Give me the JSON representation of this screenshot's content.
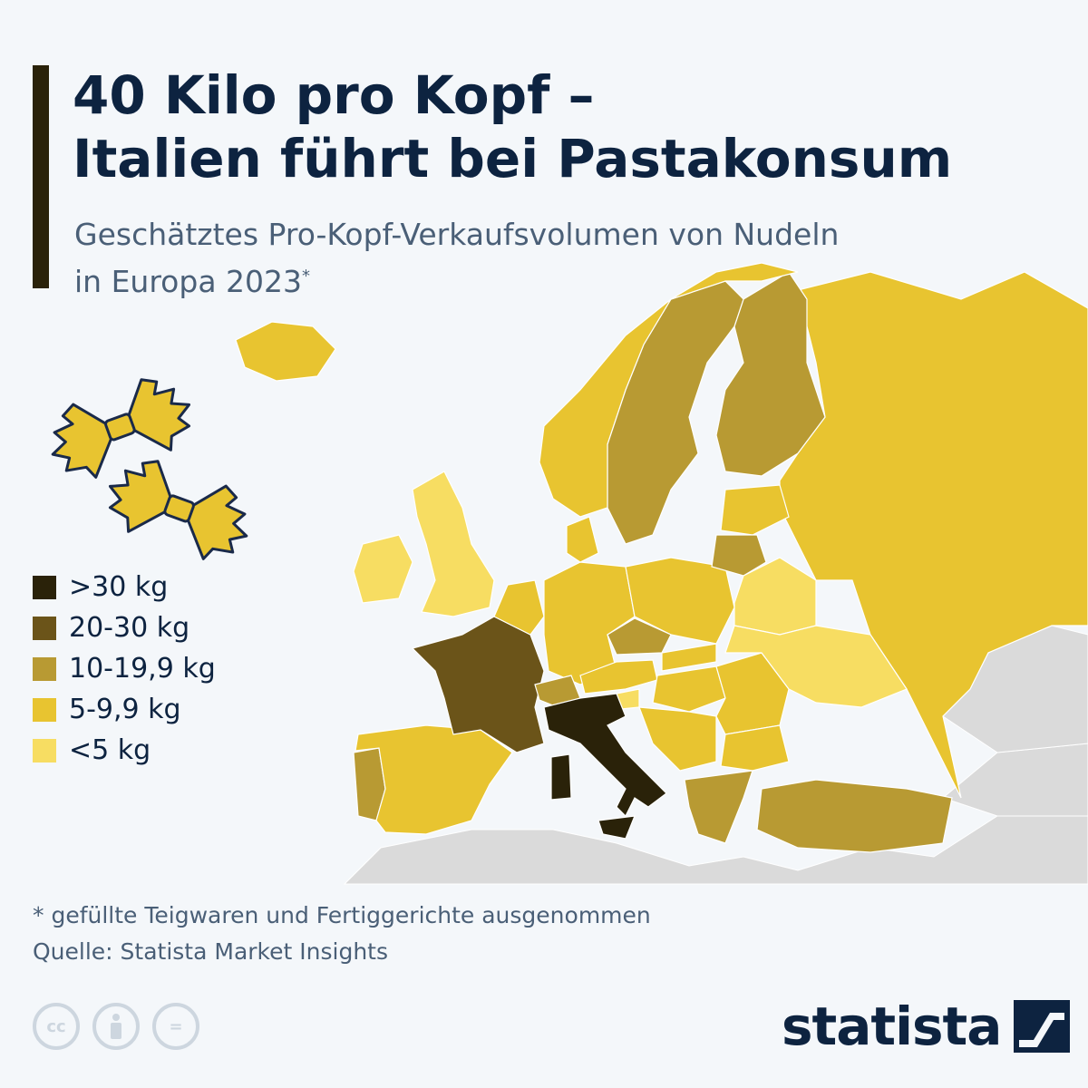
{
  "title": {
    "line1": "40 Kilo pro Kopf –",
    "line2": "Italien führt bei Pastakonsum"
  },
  "subtitle": {
    "line1": "Geschätztes Pro-Kopf-Verkaufsvolumen von Nudeln",
    "line2": "in Europa 2023",
    "marker": "*"
  },
  "legend": [
    {
      "label": ">30 kg",
      "color": "#2a2209"
    },
    {
      "label": "20-30 kg",
      "color": "#6b5419"
    },
    {
      "label": "10-19,9 kg",
      "color": "#b89a33"
    },
    {
      "label": "5-9,9 kg",
      "color": "#e8c430"
    },
    {
      "label": "<5 kg",
      "color": "#f7dd62"
    }
  ],
  "colors": {
    "nodata": "#dadada",
    "water": "#f4f7fa",
    "title": "#0d2340",
    "accent_bar": "#2a2209",
    "icon_fill": "#e8c430",
    "icon_stroke": "#1a2a4a"
  },
  "map_data": {
    "type": "choropleth",
    "region": "Europe",
    "year": "2023",
    "unit": "kg per capita",
    "countries": [
      {
        "name": "Italy",
        "category": ">30 kg"
      },
      {
        "name": "France",
        "category": "20-30 kg"
      },
      {
        "name": "Switzerland",
        "category": "10-19,9 kg"
      },
      {
        "name": "Czechia",
        "category": "10-19,9 kg"
      },
      {
        "name": "Sweden",
        "category": "10-19,9 kg"
      },
      {
        "name": "Finland",
        "category": "10-19,9 kg"
      },
      {
        "name": "Lithuania",
        "category": "10-19,9 kg"
      },
      {
        "name": "Greece",
        "category": "10-19,9 kg"
      },
      {
        "name": "Turkey",
        "category": "10-19,9 kg"
      },
      {
        "name": "Portugal",
        "category": "10-19,9 kg"
      },
      {
        "name": "Spain",
        "category": "5-9,9 kg"
      },
      {
        "name": "Germany",
        "category": "5-9,9 kg"
      },
      {
        "name": "Poland",
        "category": "5-9,9 kg"
      },
      {
        "name": "Russia",
        "category": "5-9,9 kg"
      },
      {
        "name": "Norway",
        "category": "5-9,9 kg"
      },
      {
        "name": "Iceland",
        "category": "5-9,9 kg"
      },
      {
        "name": "Austria",
        "category": "5-9,9 kg"
      },
      {
        "name": "Hungary",
        "category": "5-9,9 kg"
      },
      {
        "name": "Romania",
        "category": "5-9,9 kg"
      },
      {
        "name": "Bulgaria",
        "category": "5-9,9 kg"
      },
      {
        "name": "Denmark",
        "category": "5-9,9 kg"
      },
      {
        "name": "Estonia",
        "category": "5-9,9 kg"
      },
      {
        "name": "Latvia",
        "category": "5-9,9 kg"
      },
      {
        "name": "Croatia",
        "category": "5-9,9 kg"
      },
      {
        "name": "Serbia",
        "category": "5-9,9 kg"
      },
      {
        "name": "Slovakia",
        "category": "5-9,9 kg"
      },
      {
        "name": "Belgium",
        "category": "5-9,9 kg"
      },
      {
        "name": "Netherlands",
        "category": "5-9,9 kg"
      },
      {
        "name": "United Kingdom",
        "category": "<5 kg"
      },
      {
        "name": "Ireland",
        "category": "<5 kg"
      },
      {
        "name": "Ukraine",
        "category": "<5 kg"
      },
      {
        "name": "Belarus",
        "category": "<5 kg"
      },
      {
        "name": "Slovenia",
        "category": "<5 kg"
      },
      {
        "name": "Moldova",
        "category": "<5 kg"
      }
    ]
  },
  "footnote": "* gefüllte Teigwaren und Fertiggerichte ausgenommen",
  "source": "Quelle: Statista Market Insights",
  "license_icons": [
    {
      "icon": "cc-icon",
      "text": "cc"
    },
    {
      "icon": "by-icon",
      "text": ""
    },
    {
      "icon": "nd-icon",
      "text": "="
    }
  ],
  "brand": "statista"
}
